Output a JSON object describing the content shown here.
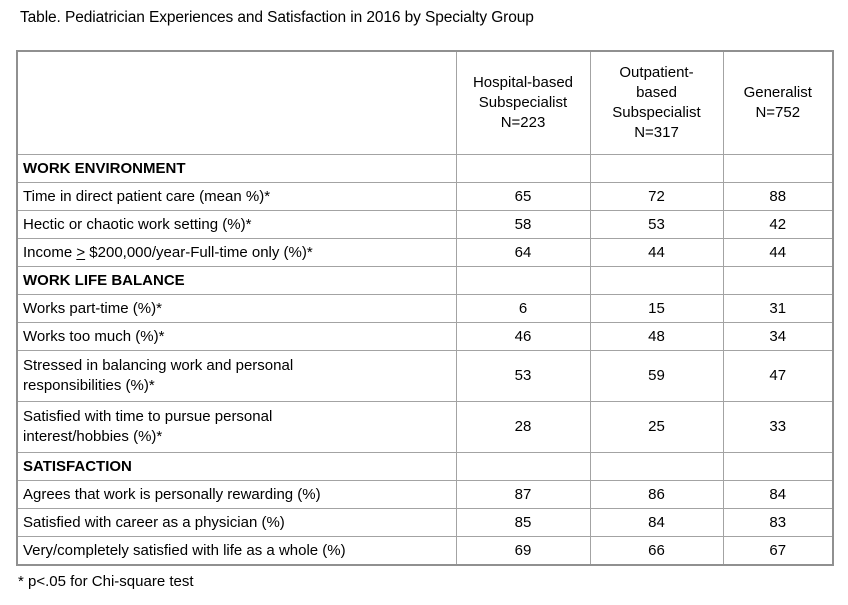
{
  "title": "Table. Pediatrician Experiences and Satisfaction in 2016 by Specialty Group",
  "footnote": "* p<.05 for Chi-square test",
  "colors": {
    "background": "#ffffff",
    "text": "#000000",
    "grid_border": "#a3a3a3",
    "outer_border": "#909090"
  },
  "table": {
    "headers": [
      "",
      "Hospital-based\nSubspecialist\nN=223",
      "Outpatient-\nbased\nSubspecialist\nN=317",
      "Generalist\nN=752"
    ],
    "rows": [
      {
        "type": "section",
        "label": "WORK ENVIRONMENT"
      },
      {
        "type": "data",
        "label": "Time in direct patient care (mean %)*",
        "values": [
          65,
          72,
          88
        ]
      },
      {
        "type": "data",
        "label": "Hectic or chaotic work setting (%)*",
        "values": [
          58,
          53,
          42
        ]
      },
      {
        "type": "data",
        "label_pre": "Income ",
        "label_gte": ">",
        "label_post": " $200,000/year-Full-time only (%)*",
        "values": [
          64,
          44,
          44
        ]
      },
      {
        "type": "section",
        "label": "WORK LIFE BALANCE"
      },
      {
        "type": "data",
        "label": "Works part-time (%)*",
        "values": [
          6,
          15,
          31
        ]
      },
      {
        "type": "data",
        "label": "Works too much (%)*",
        "values": [
          46,
          48,
          34
        ]
      },
      {
        "type": "data",
        "label": "Stressed in balancing work and personal\nresponsibilities (%)*",
        "values": [
          53,
          59,
          47
        ]
      },
      {
        "type": "data",
        "label": "Satisfied with time to pursue personal\ninterest/hobbies (%)*",
        "values": [
          28,
          25,
          33
        ]
      },
      {
        "type": "section",
        "label": "SATISFACTION"
      },
      {
        "type": "data",
        "label": "Agrees that work is personally rewarding (%)",
        "values": [
          87,
          86,
          84
        ]
      },
      {
        "type": "data",
        "label": "Satisfied with career as a physician (%)",
        "values": [
          85,
          84,
          83
        ]
      },
      {
        "type": "data",
        "label": "Very/completely satisfied with life as a whole (%)",
        "values": [
          69,
          66,
          67
        ]
      }
    ]
  }
}
